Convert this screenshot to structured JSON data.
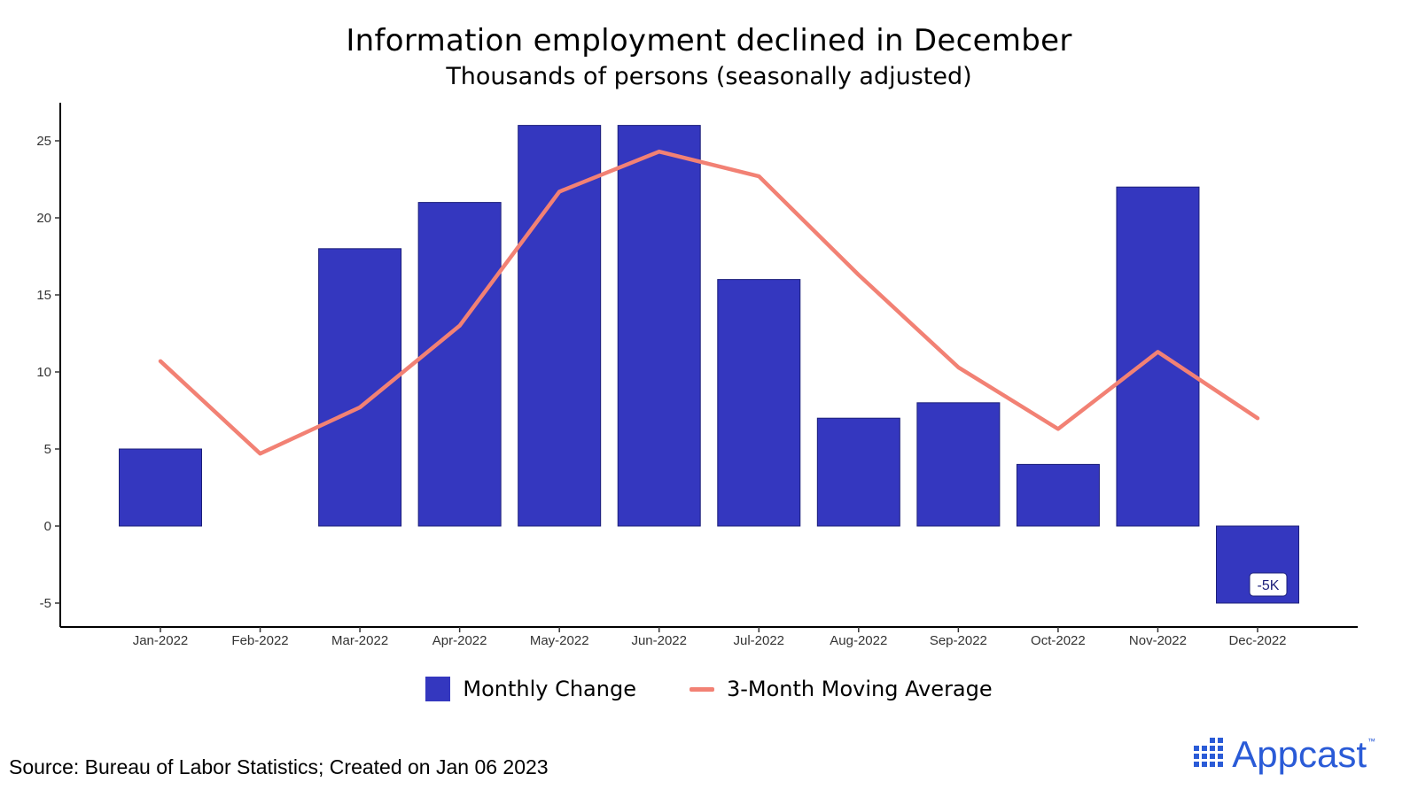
{
  "chart_data": {
    "type": "bar",
    "title": "Information employment declined in December",
    "subtitle": "Thousands of persons (seasonally adjusted)",
    "categories": [
      "Jan-2022",
      "Feb-2022",
      "Mar-2022",
      "Apr-2022",
      "May-2022",
      "Jun-2022",
      "Jul-2022",
      "Aug-2022",
      "Sep-2022",
      "Oct-2022",
      "Nov-2022",
      "Dec-2022"
    ],
    "series": [
      {
        "name": "Monthly Change",
        "type": "bar",
        "color": "#3437bf",
        "values": [
          5,
          0,
          18,
          21,
          26,
          26,
          16,
          7,
          8,
          4,
          22,
          -5
        ]
      },
      {
        "name": "3-Month Moving Average",
        "type": "line",
        "color": "#f28174",
        "values": [
          10.7,
          4.7,
          7.7,
          13.0,
          21.7,
          24.3,
          22.7,
          16.3,
          10.3,
          6.3,
          11.3,
          7.0
        ]
      }
    ],
    "yticks": [
      -5,
      0,
      5,
      10,
      15,
      20,
      25
    ],
    "ylim": [
      -6.5,
      27.5
    ],
    "annotation": {
      "category": "Dec-2022",
      "text": "-5K"
    },
    "legend_position": "bottom",
    "grid": false
  },
  "footer": {
    "source": "Source: Bureau of Labor Statistics; Created on Jan 06 2023",
    "brand": "Appcast",
    "brand_tm": "™"
  },
  "colors": {
    "bar": "#3437bf",
    "line": "#f28174",
    "brand": "#2a5bd7"
  }
}
